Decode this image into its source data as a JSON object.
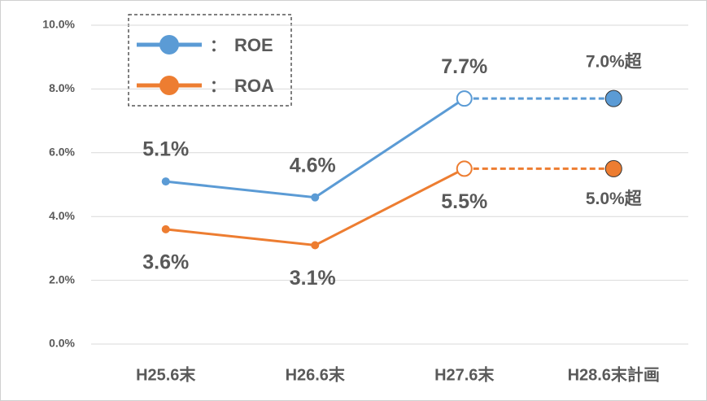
{
  "chart_data": {
    "type": "line",
    "categories": [
      "H25.6末",
      "H26.6末",
      "H27.6末",
      "H28.6末計画"
    ],
    "series": [
      {
        "name": "ROE",
        "color": "#5b9bd5",
        "values": [
          5.1,
          4.6,
          7.7,
          7.7
        ],
        "value_labels": [
          "5.1%",
          "4.6%",
          "7.7%",
          null
        ]
      },
      {
        "name": "ROA",
        "color": "#ed7d31",
        "values": [
          3.6,
          3.1,
          5.5,
          5.5
        ],
        "value_labels": [
          "3.6%",
          "3.1%",
          "5.5%",
          null
        ]
      }
    ],
    "annotations": [
      "7.0%超",
      "5.0%超"
    ],
    "legend_separator": "：",
    "ylim": [
      0,
      10
    ],
    "yticks": [
      {
        "value": 0,
        "label": "0.0%"
      },
      {
        "value": 2,
        "label": "2.0%"
      },
      {
        "value": 4,
        "label": "4.0%"
      },
      {
        "value": 6,
        "label": "6.0%"
      },
      {
        "value": 8,
        "label": "8.0%"
      },
      {
        "value": 10,
        "label": "10.0%"
      }
    ],
    "grid": true,
    "legend": "upper left"
  }
}
